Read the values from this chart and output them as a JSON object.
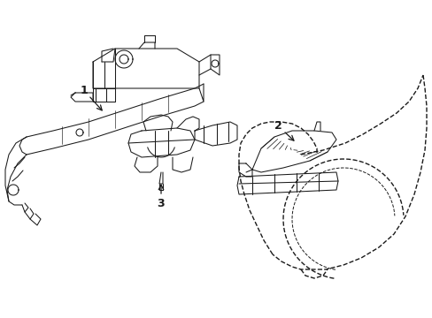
{
  "bg_color": "#ffffff",
  "line_color": "#1a1a1a",
  "figsize": [
    4.89,
    3.6
  ],
  "dpi": 100,
  "labels": [
    "1",
    "2",
    "3"
  ],
  "label_fontsize": 9
}
